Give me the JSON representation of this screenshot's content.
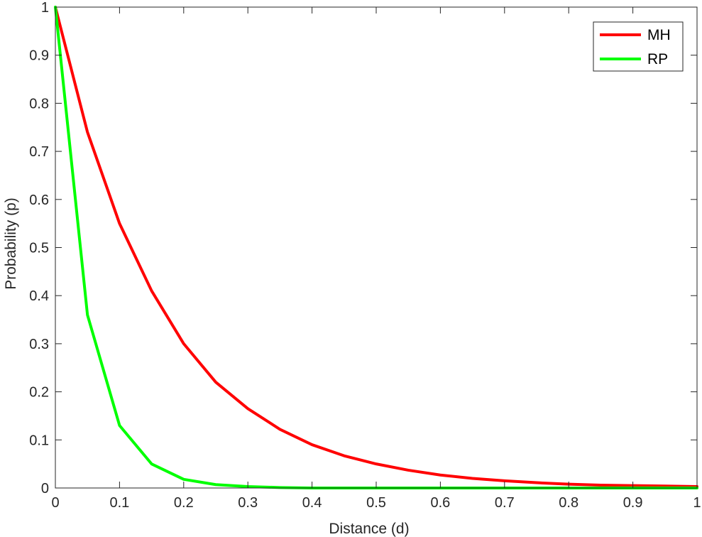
{
  "chart_data": {
    "type": "line",
    "xlabel": "Distance (d)",
    "ylabel": "Probability (p)",
    "xlim": [
      0,
      1
    ],
    "ylim": [
      0,
      1
    ],
    "x_ticks": [
      "0",
      "0.1",
      "0.2",
      "0.3",
      "0.4",
      "0.5",
      "0.6",
      "0.7",
      "0.8",
      "0.9",
      "1"
    ],
    "y_ticks": [
      "0",
      "0.1",
      "0.2",
      "0.3",
      "0.4",
      "0.5",
      "0.6",
      "0.7",
      "0.8",
      "0.9",
      "1"
    ],
    "grid": false,
    "legend_position": "top-right",
    "x": [
      0,
      0.05,
      0.1,
      0.15,
      0.2,
      0.25,
      0.3,
      0.35,
      0.4,
      0.45,
      0.5,
      0.55,
      0.6,
      0.65,
      0.7,
      0.75,
      0.8,
      0.85,
      0.9,
      0.95,
      1.0
    ],
    "series": [
      {
        "name": "MH",
        "color": "#ff0000",
        "values": [
          1.0,
          0.74,
          0.55,
          0.41,
          0.3,
          0.22,
          0.165,
          0.122,
          0.09,
          0.067,
          0.05,
          0.037,
          0.027,
          0.02,
          0.015,
          0.011,
          0.008,
          0.006,
          0.005,
          0.004,
          0.003
        ]
      },
      {
        "name": "RP",
        "color": "#00ff00",
        "values": [
          1.0,
          0.36,
          0.13,
          0.05,
          0.018,
          0.007,
          0.003,
          0.001,
          0.0,
          0.0,
          0.0,
          0.0,
          0.0,
          0.0,
          0.0,
          0.0,
          0.0,
          0.0,
          0.0,
          0.0,
          0.0
        ]
      }
    ]
  }
}
